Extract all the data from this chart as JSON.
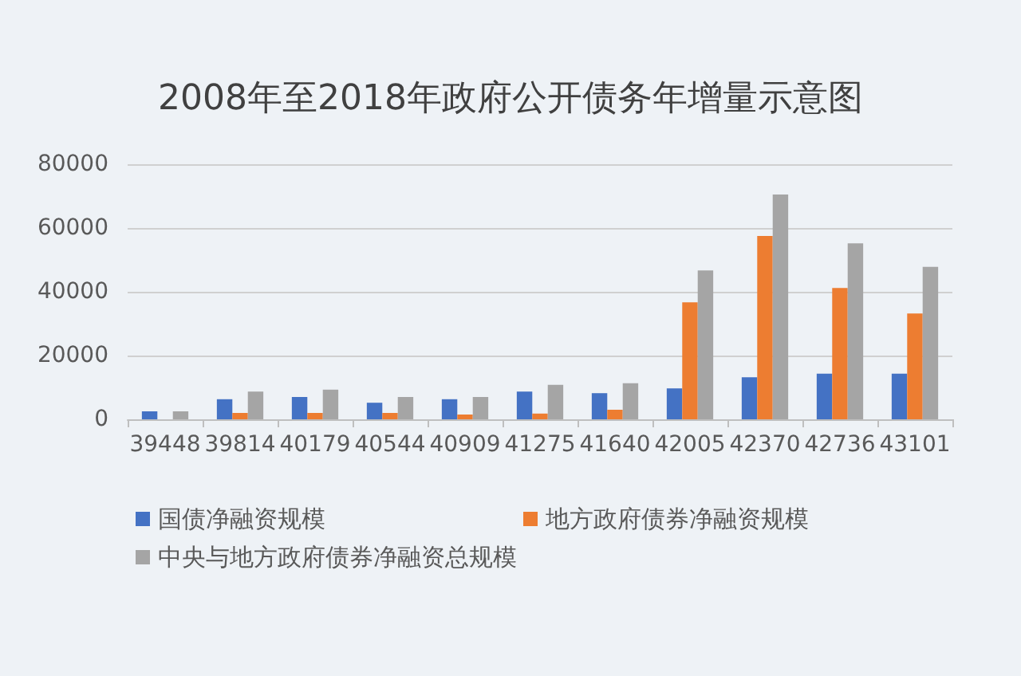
{
  "chart_data": {
    "type": "bar",
    "title": "2008年至2018年政府公开债务年增量示意图",
    "categories": [
      "39448",
      "39814",
      "40179",
      "40544",
      "40909",
      "41275",
      "41640",
      "42005",
      "42370",
      "42736",
      "43101"
    ],
    "series": [
      {
        "name": "国债净融资规模",
        "color": "#4472c4",
        "values": [
          2500,
          6300,
          7000,
          5200,
          6300,
          8700,
          8200,
          9700,
          13200,
          14300,
          14300
        ]
      },
      {
        "name": "地方政府债券净融资规模",
        "color": "#ed7d31",
        "values": [
          0,
          2000,
          2000,
          2000,
          1500,
          1800,
          3000,
          36700,
          57500,
          41200,
          33200
        ]
      },
      {
        "name": "中央与地方政府债券净融资总规模",
        "color": "#a5a5a5",
        "values": [
          2500,
          8700,
          9300,
          7000,
          7000,
          10800,
          11300,
          46700,
          70500,
          55200,
          47800
        ]
      }
    ],
    "ylim": [
      0,
      80000
    ],
    "yticks": [
      0,
      20000,
      40000,
      60000,
      80000
    ],
    "grid": "y",
    "legend": "bottom"
  }
}
